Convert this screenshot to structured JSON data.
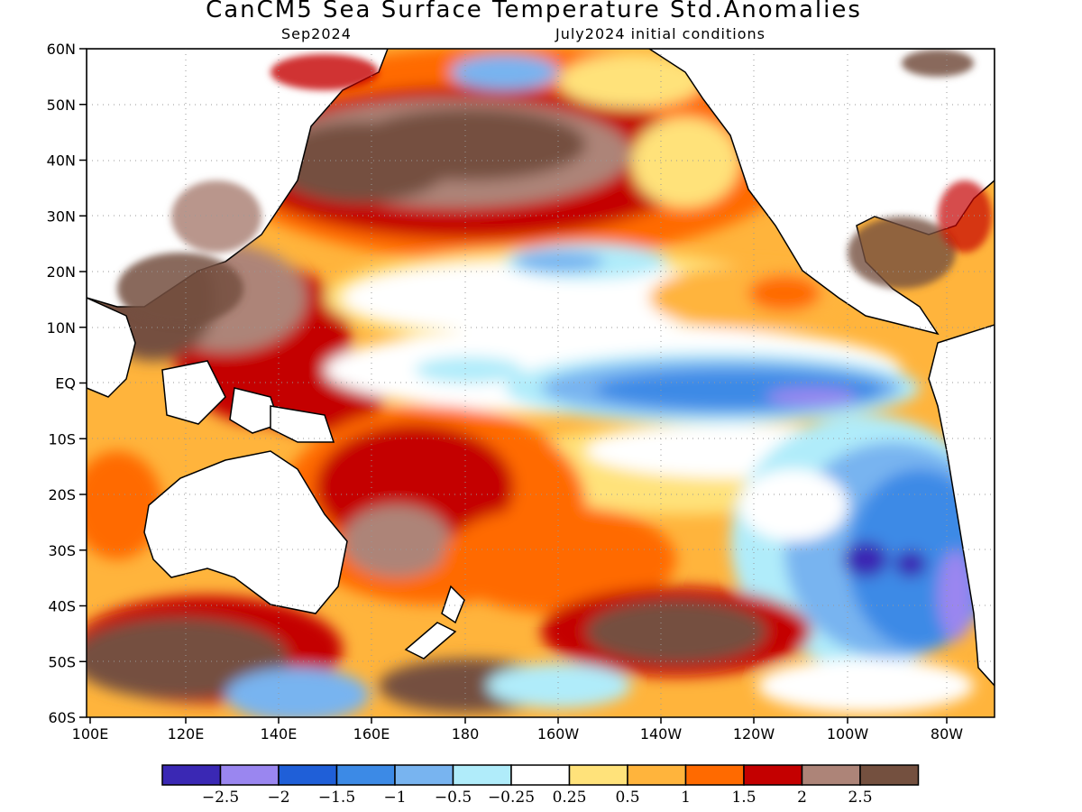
{
  "title": "CanCM5 Sea Surface Temperature Std.Anomalies",
  "subtitle_left": "Sep2024",
  "subtitle_right": "July2024 initial conditions",
  "lat_labels": [
    "60N",
    "50N",
    "40N",
    "30N",
    "20N",
    "10N",
    "EQ",
    "10S",
    "20S",
    "30S",
    "40S",
    "50S",
    "60S"
  ],
  "lon_labels": [
    "100E",
    "120E",
    "140E",
    "160E",
    "180",
    "160W",
    "140W",
    "120W",
    "100W",
    "80W"
  ],
  "colorbar": {
    "colors": [
      "#3a28b4",
      "#9a86f0",
      "#1f5fd8",
      "#3c8ae6",
      "#78b4f0",
      "#b0ecfa",
      "#ffffff",
      "#ffe27a",
      "#ffb43c",
      "#ff6a00",
      "#c40000",
      "#ad8478",
      "#74503f"
    ],
    "labels": [
      "−2.5",
      "−2",
      "−1.5",
      "−1",
      "−0.5",
      "−0.25",
      "0.25",
      "0.5",
      "1",
      "1.5",
      "2",
      "2.5"
    ]
  },
  "chart_data": {
    "type": "heatmap",
    "title": "CanCM5 Sea Surface Temperature Std.Anomalies",
    "subtitle": "Sep2024 / July2024 initial conditions",
    "region": {
      "lon_range": [
        "100E",
        "70W"
      ],
      "lat_range": [
        "60S",
        "60N"
      ]
    },
    "levels": [
      -2.5,
      -2,
      -1.5,
      -1,
      -0.5,
      -0.25,
      0.25,
      0.5,
      1,
      1.5,
      2,
      2.5
    ],
    "features": [
      {
        "region": "North Pacific 35N-50N, 150E-150W",
        "anomaly": ">2.5"
      },
      {
        "region": "Western Pacific warm pool / Maritime Continent",
        "anomaly": "2 to >2.5"
      },
      {
        "region": "Equatorial central-east Pacific 0-10S, 160W-90W",
        "anomaly": "-0.5 to -2"
      },
      {
        "region": "Southeast Pacific off Chile 20S-45S",
        "anomaly": "-1 to -2.5"
      },
      {
        "region": "Southern Ocean 40S-55S, 150W-120W",
        "anomaly": ">2.5"
      },
      {
        "region": "Tasman Sea / South of Australia",
        "anomaly": "1.5 to >2.5"
      }
    ]
  }
}
